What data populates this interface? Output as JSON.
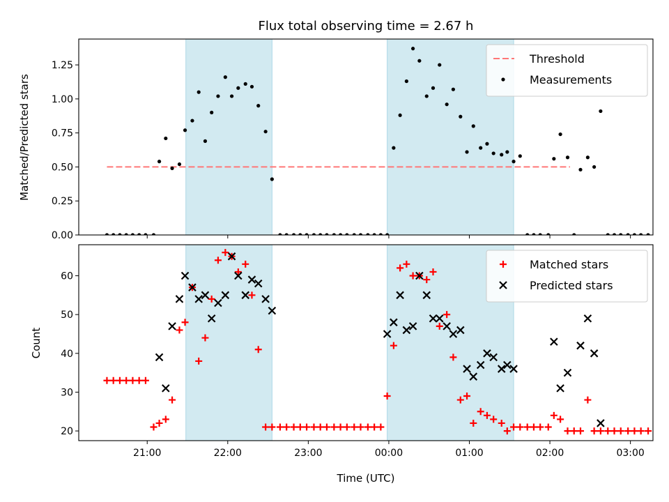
{
  "chart_data": [
    {
      "type": "scatter",
      "title": "Flux total observing time = 2.67 h",
      "xlabel": "",
      "ylabel": "Matched/Predicted stars",
      "ylim": [
        0,
        1.44
      ],
      "yticks": [
        0,
        0.25,
        0.5,
        0.75,
        1.0,
        1.25
      ],
      "ytick_labels": [
        "0.00",
        "0.25",
        "0.50",
        "0.75",
        "1.00",
        "1.25"
      ],
      "x_unit": "hours since 21:00 UTC",
      "xlim": [
        -0.85,
        6.28
      ],
      "threshold": {
        "name": "Threshold",
        "value": 0.5,
        "x_range": [
          -0.5,
          5.25
        ],
        "color": "#ff7777"
      },
      "shaded_regions": [
        [
          0.48,
          1.55
        ],
        [
          2.98,
          4.55
        ]
      ],
      "shade_color": "#add8e6",
      "legend_position": "upper right",
      "series": [
        {
          "name": "Measurements",
          "color": "#000000",
          "x": [
            -0.5,
            -0.42,
            -0.34,
            -0.26,
            -0.18,
            -0.1,
            -0.02,
            0.08,
            0.15,
            0.23,
            0.31,
            0.4,
            0.47,
            0.56,
            0.64,
            0.72,
            0.8,
            0.88,
            0.97,
            1.05,
            1.13,
            1.22,
            1.3,
            1.38,
            1.47,
            1.55,
            1.65,
            1.73,
            1.82,
            1.9,
            1.98,
            2.07,
            2.15,
            2.23,
            2.32,
            2.4,
            2.48,
            2.57,
            2.65,
            2.74,
            2.82,
            2.9,
            2.98,
            3.06,
            3.14,
            3.22,
            3.3,
            3.38,
            3.47,
            3.55,
            3.63,
            3.72,
            3.8,
            3.89,
            3.97,
            4.05,
            4.14,
            4.22,
            4.3,
            4.4,
            4.47,
            4.55,
            4.63,
            4.72,
            4.8,
            4.88,
            4.98,
            5.05,
            5.13,
            5.22,
            5.3,
            5.38,
            5.47,
            5.55,
            5.63,
            5.72,
            5.8,
            5.88,
            5.97,
            6.05,
            6.13,
            6.22
          ],
          "y": [
            0,
            0,
            0,
            0,
            0,
            0,
            0,
            0,
            0.54,
            0.71,
            0.49,
            0.52,
            0.77,
            0.84,
            1.05,
            0.69,
            0.9,
            1.02,
            1.16,
            1.02,
            1.08,
            1.11,
            1.09,
            0.95,
            0.76,
            0.41,
            0,
            0,
            0,
            0,
            0,
            0,
            0,
            0,
            0,
            0,
            0,
            0,
            0,
            0,
            0,
            0,
            0,
            0.64,
            0.88,
            1.13,
            1.37,
            1.28,
            1.02,
            1.08,
            1.25,
            0.96,
            1.07,
            0.87,
            0.61,
            0.8,
            0.64,
            0.67,
            0.6,
            0.59,
            0.61,
            0.54,
            0.58,
            0,
            0,
            0,
            0,
            0.56,
            0.74,
            0.57,
            0,
            0.48,
            0.57,
            0.5,
            0.91,
            0,
            0,
            0,
            0,
            0,
            0,
            0
          ]
        }
      ]
    },
    {
      "type": "scatter",
      "title": "",
      "xlabel": "Time (UTC)",
      "ylabel": "Count",
      "ylim": [
        17.5,
        68
      ],
      "yticks": [
        20,
        30,
        40,
        50,
        60
      ],
      "ytick_labels": [
        "20",
        "30",
        "40",
        "50",
        "60"
      ],
      "x_unit": "hours since 21:00 UTC",
      "xlim": [
        -0.85,
        6.28
      ],
      "xticks": [
        0,
        1,
        2,
        3,
        4,
        5,
        6
      ],
      "xtick_labels": [
        "21:00",
        "22:00",
        "23:00",
        "00:00",
        "01:00",
        "02:00",
        "03:00"
      ],
      "shaded_regions": [
        [
          0.48,
          1.55
        ],
        [
          2.98,
          4.55
        ]
      ],
      "shade_color": "#add8e6",
      "legend_position": "upper right",
      "series": [
        {
          "name": "Matched stars",
          "marker": "plus",
          "color": "#ff0000",
          "x": [
            -0.5,
            -0.42,
            -0.34,
            -0.26,
            -0.18,
            -0.1,
            -0.02,
            0.08,
            0.15,
            0.23,
            0.31,
            0.4,
            0.47,
            0.56,
            0.64,
            0.72,
            0.8,
            0.88,
            0.97,
            1.05,
            1.13,
            1.22,
            1.3,
            1.38,
            1.47,
            1.55,
            1.65,
            1.73,
            1.82,
            1.9,
            1.98,
            2.07,
            2.15,
            2.23,
            2.32,
            2.4,
            2.48,
            2.57,
            2.65,
            2.74,
            2.82,
            2.9,
            2.98,
            3.06,
            3.14,
            3.22,
            3.3,
            3.38,
            3.47,
            3.55,
            3.63,
            3.72,
            3.8,
            3.89,
            3.97,
            4.05,
            4.14,
            4.22,
            4.3,
            4.4,
            4.47,
            4.55,
            4.63,
            4.72,
            4.8,
            4.88,
            4.98,
            5.05,
            5.13,
            5.22,
            5.3,
            5.38,
            5.47,
            5.55,
            5.63,
            5.72,
            5.8,
            5.88,
            5.97,
            6.05,
            6.13,
            6.22
          ],
          "y": [
            33,
            33,
            33,
            33,
            33,
            33,
            33,
            21,
            22,
            23,
            28,
            46,
            48,
            57,
            38,
            44,
            54,
            64,
            66,
            65,
            61,
            63,
            55,
            41,
            21,
            21,
            21,
            21,
            21,
            21,
            21,
            21,
            21,
            21,
            21,
            21,
            21,
            21,
            21,
            21,
            21,
            21,
            29,
            42,
            62,
            63,
            60,
            60,
            59,
            61,
            47,
            50,
            39,
            28,
            29,
            22,
            25,
            24,
            23,
            22,
            20,
            21,
            21,
            21,
            21,
            21,
            21,
            24,
            23,
            20,
            20,
            20,
            28,
            20,
            20,
            20,
            20,
            20,
            20,
            20,
            20,
            20
          ]
        },
        {
          "name": "Predicted stars",
          "marker": "x",
          "color": "#000000",
          "x": [
            0.15,
            0.23,
            0.31,
            0.4,
            0.47,
            0.56,
            0.64,
            0.72,
            0.8,
            0.88,
            0.97,
            1.05,
            1.13,
            1.22,
            1.3,
            1.38,
            1.47,
            1.55,
            2.98,
            3.06,
            3.14,
            3.22,
            3.3,
            3.38,
            3.47,
            3.55,
            3.63,
            3.72,
            3.8,
            3.89,
            3.97,
            4.05,
            4.14,
            4.22,
            4.3,
            4.4,
            4.47,
            4.55,
            5.05,
            5.13,
            5.22,
            5.38,
            5.47,
            5.55,
            5.63
          ],
          "y": [
            39,
            31,
            47,
            54,
            60,
            57,
            54,
            55,
            49,
            53,
            55,
            65,
            60,
            55,
            59,
            58,
            54,
            51,
            45,
            48,
            55,
            46,
            47,
            60,
            55,
            49,
            49,
            47,
            45,
            46,
            36,
            34,
            37,
            40,
            39,
            36,
            37,
            36,
            43,
            31,
            35,
            42,
            49,
            40,
            22
          ]
        }
      ]
    }
  ]
}
